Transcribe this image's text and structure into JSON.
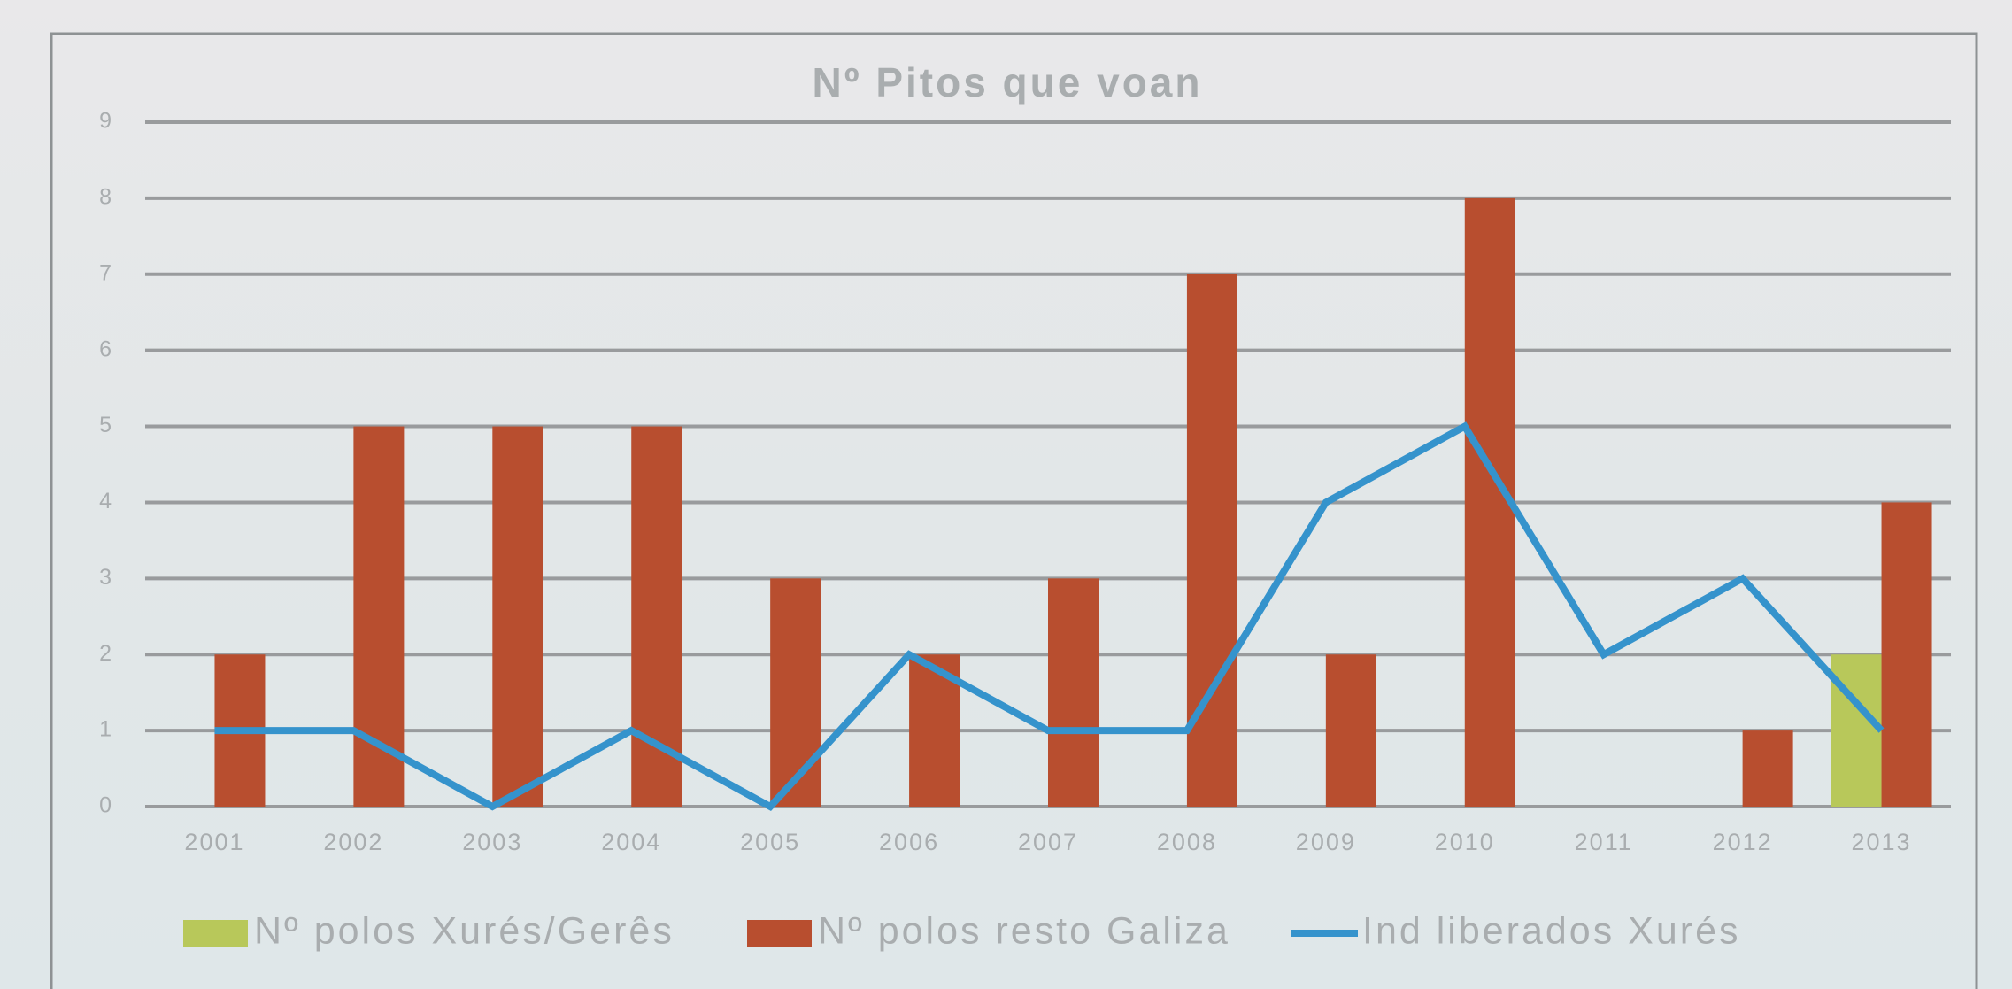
{
  "chart_data": {
    "type": "bar+line",
    "title": "Nº Pitos que voan",
    "categories": [
      "2001",
      "2002",
      "2003",
      "2004",
      "2005",
      "2006",
      "2007",
      "2008",
      "2009",
      "2010",
      "2011",
      "2012",
      "2013"
    ],
    "series": [
      {
        "name": "Nº polos Xurés/Gerês",
        "type": "bar",
        "color": "#b8c85a",
        "values": [
          0,
          0,
          0,
          0,
          0,
          0,
          0,
          0,
          0,
          0,
          0,
          0,
          2
        ]
      },
      {
        "name": "Nº polos resto Galiza",
        "type": "bar",
        "color": "#b84e2f",
        "values": [
          2,
          5,
          5,
          5,
          3,
          2,
          3,
          7,
          2,
          8,
          0,
          1,
          4
        ]
      },
      {
        "name": "Ind liberados Xurés",
        "type": "line",
        "color": "#3593cc",
        "values": [
          1,
          1,
          0,
          1,
          0,
          2,
          1,
          1,
          4,
          5,
          2,
          3,
          1
        ]
      }
    ],
    "ylim": [
      0,
      9
    ],
    "yticks": [
      0,
      1,
      2,
      3,
      4,
      5,
      6,
      7,
      8,
      9
    ],
    "grid": true,
    "legend": "bottom"
  }
}
